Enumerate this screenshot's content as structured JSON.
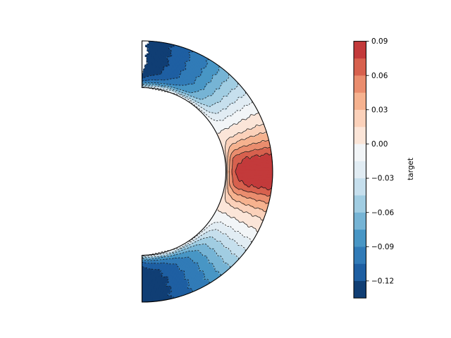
{
  "chart_data": {
    "type": "heatmap",
    "subtype": "polar-half-annulus-filled-contour",
    "title": "",
    "colorbar": {
      "label": "target",
      "tick_values": [
        0.09,
        0.06,
        0.03,
        0.0,
        -0.03,
        -0.06,
        -0.09,
        -0.12
      ],
      "tick_labels": [
        "0.09",
        "0.06",
        "0.03",
        "0.00",
        "−0.03",
        "−0.06",
        "−0.09",
        "−0.12"
      ],
      "vmin": -0.135,
      "vmax": 0.09,
      "level_step": 0.015,
      "n_blocks": 15,
      "level_colors_low_to_high": [
        "#103e74",
        "#1e5fa2",
        "#317bb7",
        "#4896c5",
        "#76b4d5",
        "#a1cde2",
        "#c6dfed",
        "#e1ecf3",
        "#f2f5f7",
        "#fbe5d8",
        "#fbd1ba",
        "#f6b28f",
        "#ea8d6e",
        "#d7614e",
        "#c33a3b"
      ]
    },
    "contour_levels": {
      "start": -0.135,
      "step": 0.015,
      "count": 15
    },
    "field": {
      "theta_range_deg": [
        -90,
        90
      ],
      "inner_boundary_value": 0.0,
      "outer_value_by_angle_top": [
        [
          0,
          0.0875
        ],
        [
          8,
          0.075
        ],
        [
          10.8,
          0.06
        ],
        [
          14,
          0.045
        ],
        [
          17.7,
          0.03
        ],
        [
          21.5,
          0.015
        ],
        [
          27,
          0.0
        ],
        [
          32.3,
          -0.015
        ],
        [
          37,
          -0.03
        ],
        [
          42,
          -0.045
        ],
        [
          47.5,
          -0.06
        ],
        [
          53,
          -0.075
        ],
        [
          59,
          -0.09
        ],
        [
          67.5,
          -0.105
        ],
        [
          76.5,
          -0.12
        ],
        [
          87.4,
          -0.135
        ],
        [
          90,
          -0.1415
        ]
      ],
      "outer_value_by_angle_bottom": [
        [
          0,
          0.0875
        ],
        [
          8,
          0.075
        ],
        [
          10.8,
          0.06
        ],
        [
          14,
          0.045
        ],
        [
          17.7,
          0.03
        ],
        [
          21.5,
          0.015
        ],
        [
          27,
          0.0
        ],
        [
          32.3,
          -0.015
        ],
        [
          37,
          -0.03
        ],
        [
          42,
          -0.045
        ],
        [
          47.5,
          -0.06
        ],
        [
          53,
          -0.075
        ],
        [
          59,
          -0.09
        ],
        [
          67.5,
          -0.105
        ],
        [
          76.5,
          -0.12
        ],
        [
          90,
          -0.133
        ]
      ]
    },
    "style": {
      "negative_contours": "dashed",
      "positive_contours": "solid",
      "contour_line_color": "#1a1a1a",
      "outline_color": "#000000",
      "background": "#ffffff"
    }
  }
}
